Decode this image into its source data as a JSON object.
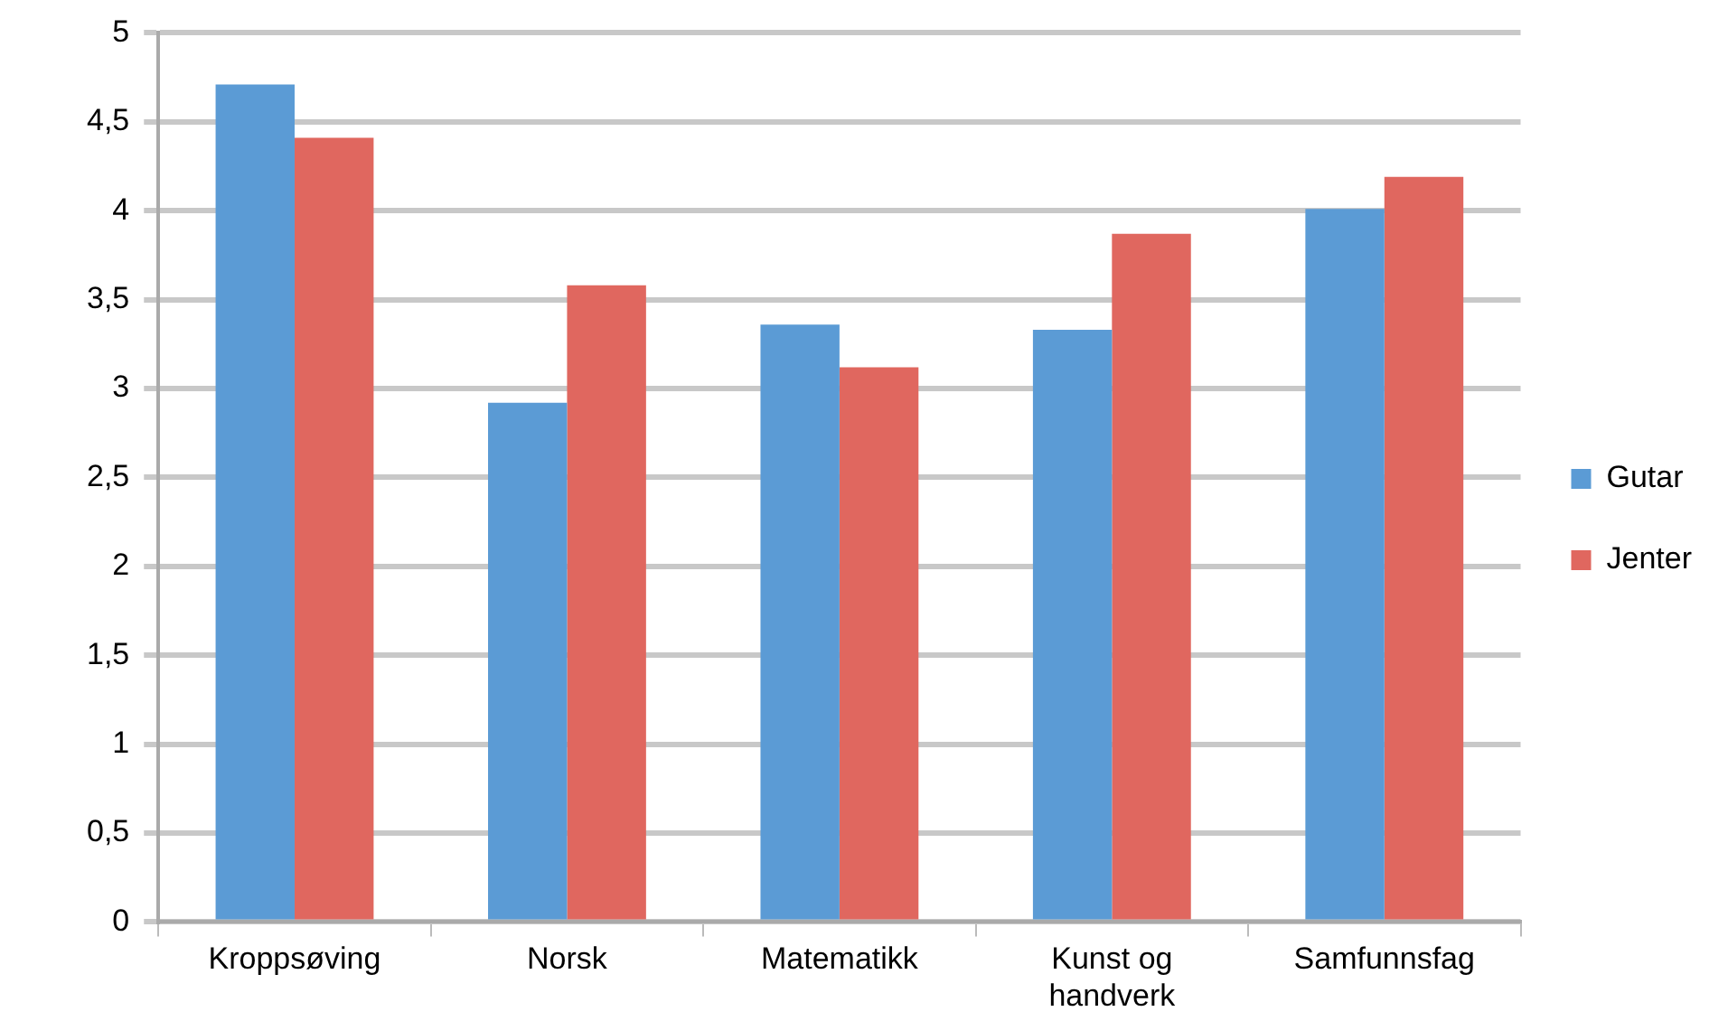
{
  "chart_data": {
    "type": "bar",
    "categories": [
      "Kroppsøving",
      "Norsk",
      "Matematikk",
      "Kunst og handverk",
      "Samfunnsfag"
    ],
    "series": [
      {
        "name": "Gutar",
        "color": "#5b9bd5",
        "values": [
          4.71,
          2.92,
          3.36,
          3.33,
          4.01
        ]
      },
      {
        "name": "Jenter",
        "color": "#e0675f",
        "values": [
          4.41,
          3.58,
          3.12,
          3.87,
          4.19
        ]
      }
    ],
    "ylim": [
      0,
      5
    ],
    "yticks": [
      0,
      {
        "value": 0.5,
        "label": "0,5"
      },
      1,
      {
        "value": 1.5,
        "label": "1,5"
      },
      2,
      {
        "value": 2.5,
        "label": "2,5"
      },
      3,
      {
        "value": 3.5,
        "label": "3,5"
      },
      4,
      {
        "value": 4.5,
        "label": "4,5"
      },
      5
    ],
    "grid": "y",
    "legend": "right"
  }
}
